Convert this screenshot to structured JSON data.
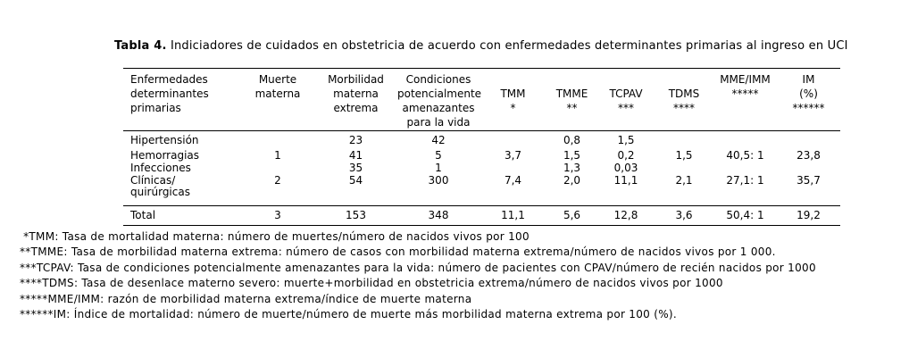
{
  "title": {
    "label": "Tabla 4.",
    "text": " Indiciadores de cuidados en obstetricia de acuerdo con enfermedades determinantes primarias al ingreso en UCI"
  },
  "table": {
    "header": [
      {
        "id": "enfermedades",
        "lines": [
          "Enfermedades",
          "determinantes",
          "primarias"
        ]
      },
      {
        "id": "muerte-materna",
        "lines": [
          "Muerte",
          "materna"
        ]
      },
      {
        "id": "morbilidad-materna-extrema",
        "lines": [
          "Morbilidad",
          "materna",
          "extrema"
        ]
      },
      {
        "id": "condiciones-potencialmente-amenazantes",
        "lines": [
          "Condiciones",
          "potencialmente",
          "amenazantes",
          "para la vida"
        ]
      },
      {
        "id": "tmm",
        "lines": [
          "",
          "TMM",
          "*"
        ]
      },
      {
        "id": "tmme",
        "lines": [
          "",
          "TMME",
          "**"
        ]
      },
      {
        "id": "tcpav",
        "lines": [
          "",
          "TCPAV",
          "***"
        ]
      },
      {
        "id": "tdms",
        "lines": [
          "",
          "TDMS",
          "****"
        ]
      },
      {
        "id": "mme-imm",
        "lines": [
          "MME/IMM",
          "*****"
        ]
      },
      {
        "id": "im",
        "lines": [
          "IM",
          "(%)",
          "******"
        ]
      }
    ],
    "rows": [
      [
        "Hipertensión",
        "",
        "23",
        "42",
        "",
        "0,8",
        "1,5",
        "",
        "",
        ""
      ],
      [
        "Hemorragias",
        "1",
        "41",
        "5",
        "3,7",
        "1,5",
        "0,2",
        "1,5",
        "40,5: 1",
        "23,8"
      ],
      [
        "Infecciones",
        "",
        "35",
        "1",
        "",
        "1,3",
        "0,03",
        "",
        "",
        ""
      ],
      [
        "Clínicas/\nquirúrgicas",
        "2",
        "54",
        "300",
        "7,4",
        "2,0",
        "11,1",
        "2,1",
        "27,1: 1",
        "35,7"
      ]
    ],
    "total_row": [
      "Total",
      "3",
      "153",
      "348",
      "11,1",
      "5,6",
      "12,8",
      "3,6",
      "50,4: 1",
      "19,2"
    ]
  },
  "footnotes": [
    " *TMM: Tasa de mortalidad materna: número de muertes/número de nacidos vivos por 100",
    "**TMME: Tasa de morbilidad materna extrema: número de casos con morbilidad materna extrema/número de nacidos vivos por 1 000.",
    "***TCPAV: Tasa de condiciones potencialmente amenazantes para la vida: número de pacientes con CPAV/número de recién nacidos por 1000",
    "****TDMS: Tasa de desenlace materno severo: muerte+morbilidad en obstetricia extrema/número de nacidos vivos por 1000",
    "*****MME/IMM: razón de morbilidad materna extrema/índice de muerte materna",
    "******IM: Índice de mortalidad: número de muerte/número de muerte más morbilidad materna extrema por 100 (%)."
  ],
  "colors": {
    "text": "#000000",
    "background": "#ffffff",
    "border": "#000000"
  }
}
